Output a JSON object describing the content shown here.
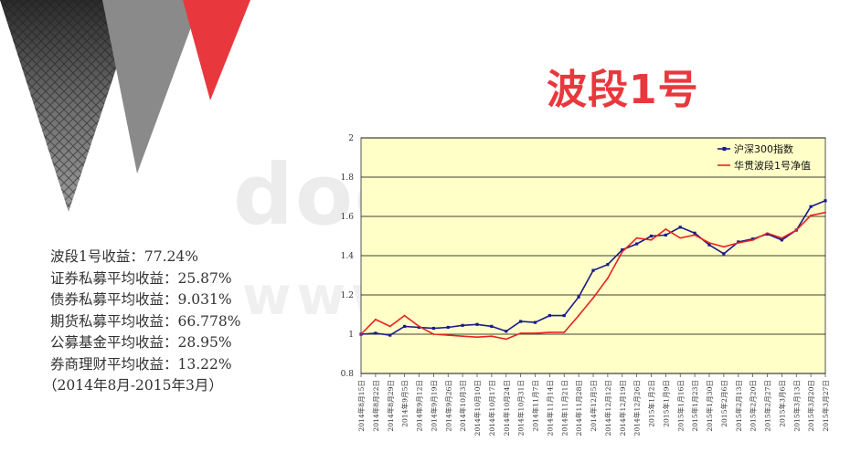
{
  "header": {
    "title": "波段1号"
  },
  "watermark": {
    "top": "doc",
    "bottom": "www."
  },
  "stats": {
    "lines": [
      "波段1号收益：77.24%",
      "证券私募平均收益：25.87%",
      "债券私募平均收益：9.031%",
      "期货私募平均收益：66.778%",
      "公募基金平均收益：28.95%",
      "券商理财平均收益：13.22%"
    ],
    "period": "（2014年8月-2015年3月）"
  },
  "chart_data": {
    "type": "line",
    "title": "",
    "xlabel": "",
    "ylabel": "",
    "ylim": [
      0.8,
      2
    ],
    "yticks": [
      "2",
      "1.8",
      "1.6",
      "1.4",
      "1.2",
      "1",
      "0.8"
    ],
    "grid": true,
    "legend_position": "top-right",
    "categories": [
      "2014年8月15日",
      "2014年8月22日",
      "2014年8月29日",
      "2014年9月5日",
      "2014年9月12日",
      "2014年9月19日",
      "2014年9月26日",
      "2014年10月3日",
      "2014年10月10日",
      "2014年10月17日",
      "2014年10月24日",
      "2014年10月31日",
      "2014年11月7日",
      "2014年11月14日",
      "2014年11月21日",
      "2014年11月28日",
      "2014年12月5日",
      "2014年12月12日",
      "2014年12月19日",
      "2014年12月26日",
      "2015年1月2日",
      "2015年1月9日",
      "2015年1月16日",
      "2015年1月23日",
      "2015年1月30日",
      "2015年2月6日",
      "2015年2月13日",
      "2015年2月20日",
      "2015年2月27日",
      "2015年3月6日",
      "2015年3月13日",
      "2015年3月20日",
      "2015年3月27日"
    ],
    "series": [
      {
        "name": "沪深300指数",
        "color": "#1a1a8c",
        "values": [
          1.0,
          1.005,
          0.995,
          1.04,
          1.035,
          1.03,
          1.035,
          1.045,
          1.05,
          1.04,
          1.015,
          1.065,
          1.06,
          1.095,
          1.095,
          1.19,
          1.325,
          1.355,
          1.43,
          1.46,
          1.5,
          1.505,
          1.545,
          1.515,
          1.455,
          1.41,
          1.47,
          1.485,
          1.51,
          1.48,
          1.53,
          1.65,
          1.68
        ]
      },
      {
        "name": "华贯波段1号净值",
        "color": "#e8231f",
        "values": [
          1.0,
          1.075,
          1.04,
          1.095,
          1.04,
          1.0,
          0.995,
          0.99,
          0.985,
          0.99,
          0.975,
          1.005,
          1.005,
          1.01,
          1.01,
          1.095,
          1.185,
          1.285,
          1.42,
          1.49,
          1.48,
          1.535,
          1.49,
          1.505,
          1.465,
          1.445,
          1.465,
          1.48,
          1.515,
          1.49,
          1.53,
          1.605,
          1.62
        ]
      }
    ]
  },
  "colors": {
    "accent": "#e8383d",
    "plot_bg": "#ffffc8",
    "grid": "#000000"
  }
}
